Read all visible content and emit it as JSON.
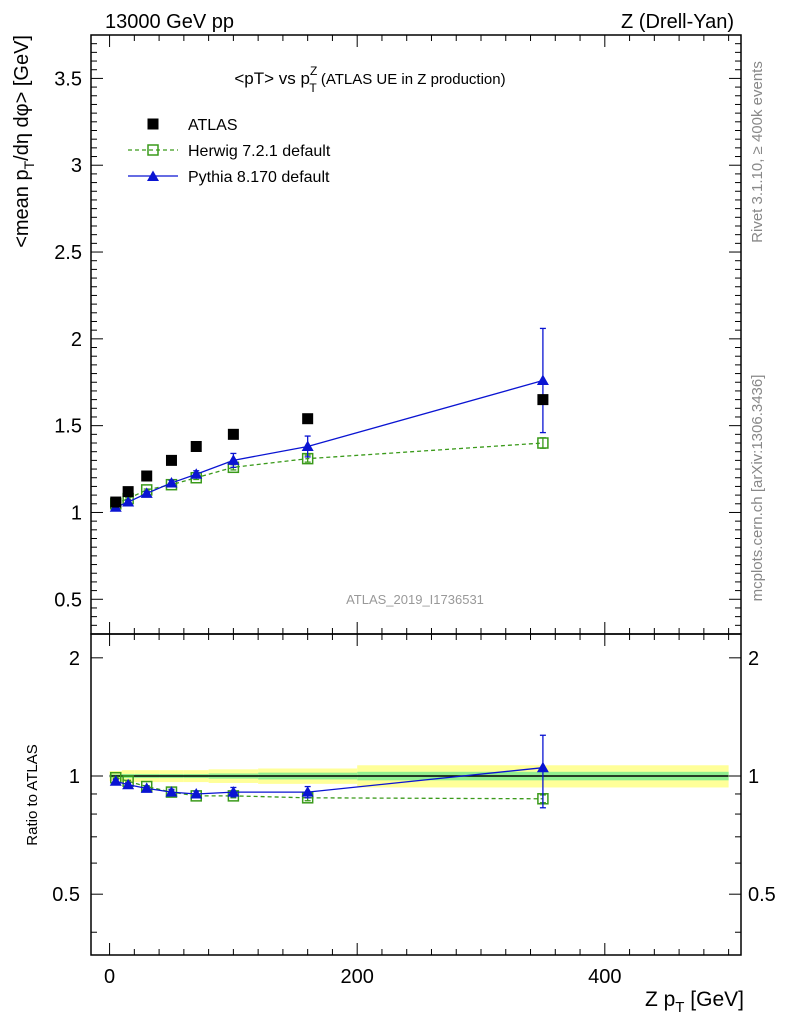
{
  "header": {
    "left": "13000 GeV pp",
    "right": "Z (Drell-Yan)"
  },
  "side_labels": {
    "rivet": "Rivet 3.1.10, ≥ 400k events",
    "mcplots": "mcplots.cern.ch [arXiv:1306.3436]"
  },
  "colors": {
    "atlas": "#000000",
    "herwig": "#3a9a1a",
    "pythia": "#0a14d2",
    "band_inner": "#90ee90",
    "band_outer": "#ffff99"
  },
  "chart_data": [
    {
      "type": "scatter",
      "name": "main",
      "title": "<pT> vs p_T^Z (ATLAS UE in Z production)",
      "title_parts": {
        "pre": "<pT> vs p",
        "sup": "Z",
        "sub": "T",
        "post": " (ATLAS UE in Z production)"
      },
      "ylabel": "<mean p_T/dη dφ> [GeV]",
      "ylabel_parts": {
        "pre": "<mean p",
        "sub": "T",
        "post": "/dη dφ> [GeV]"
      },
      "watermark": "ATLAS_2019_I1736531",
      "xlim": [
        -15,
        510
      ],
      "ylim": [
        0.3,
        3.75
      ],
      "yticks": [
        0.5,
        1,
        1.5,
        2,
        2.5,
        3,
        3.5
      ],
      "ytick_labels": [
        "0.5",
        "1",
        "1.5",
        "2",
        "2.5",
        "3",
        "3.5"
      ],
      "legend_position": "top-left",
      "series": [
        {
          "name": "ATLAS",
          "marker": "square-filled",
          "x": [
            5,
            15,
            30,
            50,
            70,
            100,
            160,
            350
          ],
          "y": [
            1.06,
            1.12,
            1.21,
            1.3,
            1.38,
            1.45,
            1.54,
            1.65
          ]
        },
        {
          "name": "Herwig 7.2.1 default",
          "marker": "square-open",
          "line": "dashed",
          "x": [
            5,
            15,
            30,
            50,
            70,
            100,
            160,
            350
          ],
          "y": [
            1.05,
            1.08,
            1.13,
            1.16,
            1.2,
            1.26,
            1.31,
            1.4
          ],
          "yerr": [
            0.005,
            0.005,
            0.005,
            0.01,
            0.01,
            0.015,
            0.02,
            0.03
          ]
        },
        {
          "name": "Pythia 8.170 default",
          "marker": "triangle-filled",
          "line": "solid",
          "x": [
            5,
            15,
            30,
            50,
            70,
            100,
            160,
            350
          ],
          "y": [
            1.03,
            1.06,
            1.11,
            1.17,
            1.22,
            1.3,
            1.38,
            1.76
          ],
          "yerr": [
            0.01,
            0.01,
            0.01,
            0.015,
            0.02,
            0.04,
            0.06,
            0.3
          ]
        }
      ]
    },
    {
      "type": "scatter",
      "name": "ratio",
      "ylabel": "Ratio to ATLAS",
      "xlabel": "Z p_T [GeV]",
      "xlabel_parts": {
        "pre": "Z p",
        "sub": "T",
        "post": " [GeV]"
      },
      "xlim": [
        -15,
        510
      ],
      "ylim": [
        0.35,
        2.3
      ],
      "yticks": [
        0.5,
        1,
        2
      ],
      "ytick_labels": [
        "0.5",
        "1",
        "2"
      ],
      "xticks": [
        0,
        200,
        400
      ],
      "xtick_labels": [
        "0",
        "200",
        "400"
      ],
      "reference_line": 1.0,
      "band": {
        "x_edges": [
          0,
          10,
          20,
          40,
          60,
          80,
          120,
          200,
          500
        ],
        "inner": [
          0.01,
          0.012,
          0.012,
          0.012,
          0.012,
          0.015,
          0.02,
          0.025
        ],
        "outer": [
          0.03,
          0.035,
          0.035,
          0.035,
          0.035,
          0.04,
          0.045,
          0.065
        ]
      },
      "series": [
        {
          "name": "Herwig 7.2.1 default",
          "marker": "square-open",
          "line": "dashed",
          "x": [
            5,
            15,
            30,
            50,
            70,
            100,
            160,
            350
          ],
          "y": [
            0.99,
            0.97,
            0.94,
            0.91,
            0.89,
            0.89,
            0.88,
            0.875
          ],
          "yerr": [
            0.005,
            0.005,
            0.005,
            0.01,
            0.01,
            0.01,
            0.015,
            0.02
          ]
        },
        {
          "name": "Pythia 8.170 default",
          "marker": "triangle-filled",
          "line": "solid",
          "x": [
            5,
            15,
            30,
            50,
            70,
            100,
            160,
            350
          ],
          "y": [
            0.97,
            0.95,
            0.93,
            0.91,
            0.9,
            0.91,
            0.91,
            1.05
          ],
          "yerr": [
            0.01,
            0.01,
            0.01,
            0.015,
            0.015,
            0.025,
            0.03,
            0.22
          ]
        }
      ]
    }
  ]
}
